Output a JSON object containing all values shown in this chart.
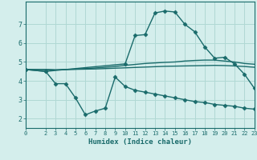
{
  "background_color": "#d4eeec",
  "grid_color": "#b0d8d4",
  "line_color": "#1a6b6b",
  "xlabel": "Humidex (Indice chaleur)",
  "xlim": [
    0,
    23
  ],
  "ylim": [
    1.5,
    8.2
  ],
  "yticks": [
    2,
    3,
    4,
    5,
    6,
    7
  ],
  "xticks": [
    0,
    2,
    3,
    4,
    5,
    6,
    7,
    8,
    9,
    10,
    11,
    12,
    13,
    14,
    15,
    16,
    17,
    18,
    19,
    20,
    21,
    22,
    23
  ],
  "series": [
    {
      "x": [
        0,
        1,
        2,
        3,
        4,
        5,
        6,
        7,
        8,
        9,
        10,
        11,
        12,
        13,
        14,
        15,
        16,
        17,
        18,
        19,
        20,
        21,
        22,
        23
      ],
      "y": [
        4.6,
        4.6,
        4.6,
        4.58,
        4.6,
        4.62,
        4.65,
        4.68,
        4.72,
        4.76,
        4.82,
        4.87,
        4.92,
        4.95,
        4.98,
        5.0,
        5.05,
        5.08,
        5.1,
        5.1,
        5.05,
        5.0,
        4.92,
        4.88
      ],
      "marker": null,
      "linewidth": 1.0
    },
    {
      "x": [
        0,
        1,
        2,
        3,
        4,
        5,
        6,
        7,
        8,
        9,
        10,
        11,
        12,
        13,
        14,
        15,
        16,
        17,
        18,
        19,
        20,
        21,
        22,
        23
      ],
      "y": [
        4.6,
        4.6,
        4.6,
        4.58,
        4.6,
        4.61,
        4.62,
        4.63,
        4.65,
        4.67,
        4.69,
        4.71,
        4.73,
        4.75,
        4.77,
        4.78,
        4.79,
        4.8,
        4.81,
        4.82,
        4.81,
        4.79,
        4.76,
        4.72
      ],
      "marker": null,
      "linewidth": 1.0
    },
    {
      "x": [
        0,
        2,
        3,
        4,
        5,
        6,
        7,
        8,
        9,
        10,
        11,
        12,
        13,
        14,
        15,
        16,
        17,
        18,
        19,
        20,
        21,
        22,
        23
      ],
      "y": [
        4.6,
        4.5,
        3.85,
        3.85,
        3.1,
        2.2,
        2.4,
        2.55,
        4.2,
        3.7,
        3.5,
        3.4,
        3.3,
        3.2,
        3.1,
        3.0,
        2.9,
        2.85,
        2.75,
        2.7,
        2.65,
        2.55,
        2.5
      ],
      "marker": "D",
      "markersize": 2.5,
      "linewidth": 1.0
    },
    {
      "x": [
        0,
        2,
        10,
        11,
        12,
        13,
        14,
        15,
        16,
        17,
        18,
        19,
        20,
        21,
        22,
        23
      ],
      "y": [
        4.6,
        4.5,
        4.9,
        6.4,
        6.45,
        7.6,
        7.7,
        7.65,
        7.0,
        6.6,
        5.8,
        5.2,
        5.25,
        4.9,
        4.35,
        3.6
      ],
      "marker": "D",
      "markersize": 2.5,
      "linewidth": 1.0
    }
  ]
}
